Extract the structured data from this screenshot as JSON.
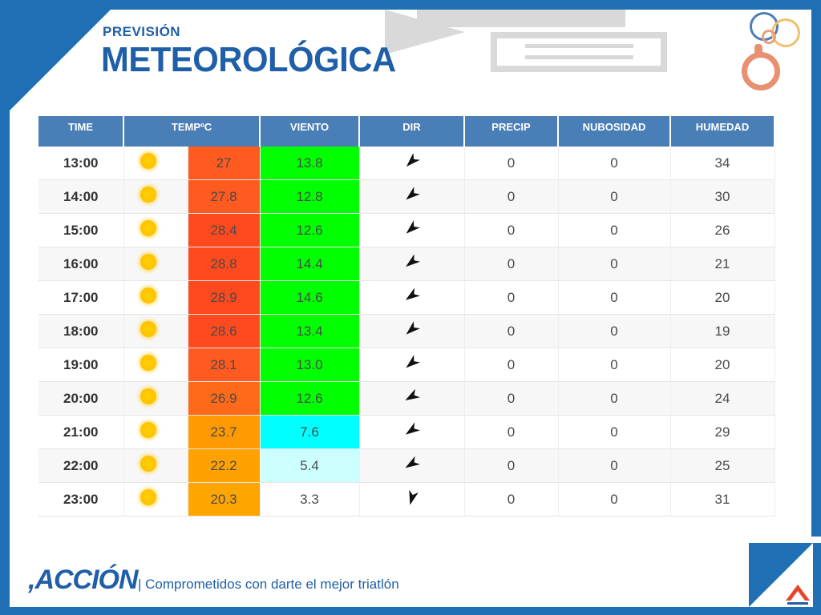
{
  "header": {
    "title_small": "PREVISIÓN",
    "title_big": "METEOROLÓGICA"
  },
  "table": {
    "columns": [
      "TIME",
      "TEMPºC",
      "VIENTO",
      "DIR",
      "PRECIP",
      "NUBOSIDAD",
      "HUMEDAD"
    ],
    "rows": [
      {
        "time": "13:00",
        "icon": "sun-icon",
        "temp": "27",
        "temp_color": "#ff5a1f",
        "wind": "13.8",
        "wind_color": "#00ff00",
        "dir_deg": 225,
        "precip": "0",
        "cloud": "0",
        "humidity": "34"
      },
      {
        "time": "14:00",
        "icon": "sun-icon",
        "temp": "27.8",
        "temp_color": "#ff5a1f",
        "wind": "12.8",
        "wind_color": "#00ff00",
        "dir_deg": 230,
        "precip": "0",
        "cloud": "0",
        "humidity": "30"
      },
      {
        "time": "15:00",
        "icon": "sun-icon",
        "temp": "28.4",
        "temp_color": "#ff4a1f",
        "wind": "12.6",
        "wind_color": "#00ff00",
        "dir_deg": 228,
        "precip": "0",
        "cloud": "0",
        "humidity": "26"
      },
      {
        "time": "16:00",
        "icon": "sun-icon",
        "temp": "28.8",
        "temp_color": "#ff4a1f",
        "wind": "14.4",
        "wind_color": "#00ff00",
        "dir_deg": 232,
        "precip": "0",
        "cloud": "0",
        "humidity": "21"
      },
      {
        "time": "17:00",
        "icon": "sun-icon",
        "temp": "28.9",
        "temp_color": "#ff4a1f",
        "wind": "14.6",
        "wind_color": "#00ff00",
        "dir_deg": 235,
        "precip": "0",
        "cloud": "0",
        "humidity": "20"
      },
      {
        "time": "18:00",
        "icon": "sun-icon",
        "temp": "28.6",
        "temp_color": "#ff4a1f",
        "wind": "13.4",
        "wind_color": "#00ff00",
        "dir_deg": 228,
        "precip": "0",
        "cloud": "0",
        "humidity": "19"
      },
      {
        "time": "19:00",
        "icon": "sun-icon",
        "temp": "28.1",
        "temp_color": "#ff5a1f",
        "wind": "13.0",
        "wind_color": "#00ff00",
        "dir_deg": 230,
        "precip": "0",
        "cloud": "0",
        "humidity": "20"
      },
      {
        "time": "20:00",
        "icon": "sun-icon",
        "temp": "26.9",
        "temp_color": "#ff6a1a",
        "wind": "12.6",
        "wind_color": "#00ff00",
        "dir_deg": 240,
        "precip": "0",
        "cloud": "0",
        "humidity": "24"
      },
      {
        "time": "21:00",
        "icon": "sun-icon",
        "temp": "23.7",
        "temp_color": "#ff9a00",
        "wind": "7.6",
        "wind_color": "#00ffff",
        "dir_deg": 235,
        "precip": "0",
        "cloud": "0",
        "humidity": "29"
      },
      {
        "time": "22:00",
        "icon": "sun-icon",
        "temp": "22.2",
        "temp_color": "#ffa200",
        "wind": "5.4",
        "wind_color": "#ccffff",
        "dir_deg": 238,
        "precip": "0",
        "cloud": "0",
        "humidity": "25"
      },
      {
        "time": "23:00",
        "icon": "sun-icon",
        "temp": "20.3",
        "temp_color": "#ffa500",
        "wind": "3.3",
        "wind_color": "#ffffff",
        "dir_deg": 195,
        "precip": "0",
        "cloud": "0",
        "humidity": "31"
      }
    ]
  },
  "footer": {
    "brand": ",ACCIÓN",
    "tagline": "| Comprometidos con darte el mejor triatlón"
  }
}
